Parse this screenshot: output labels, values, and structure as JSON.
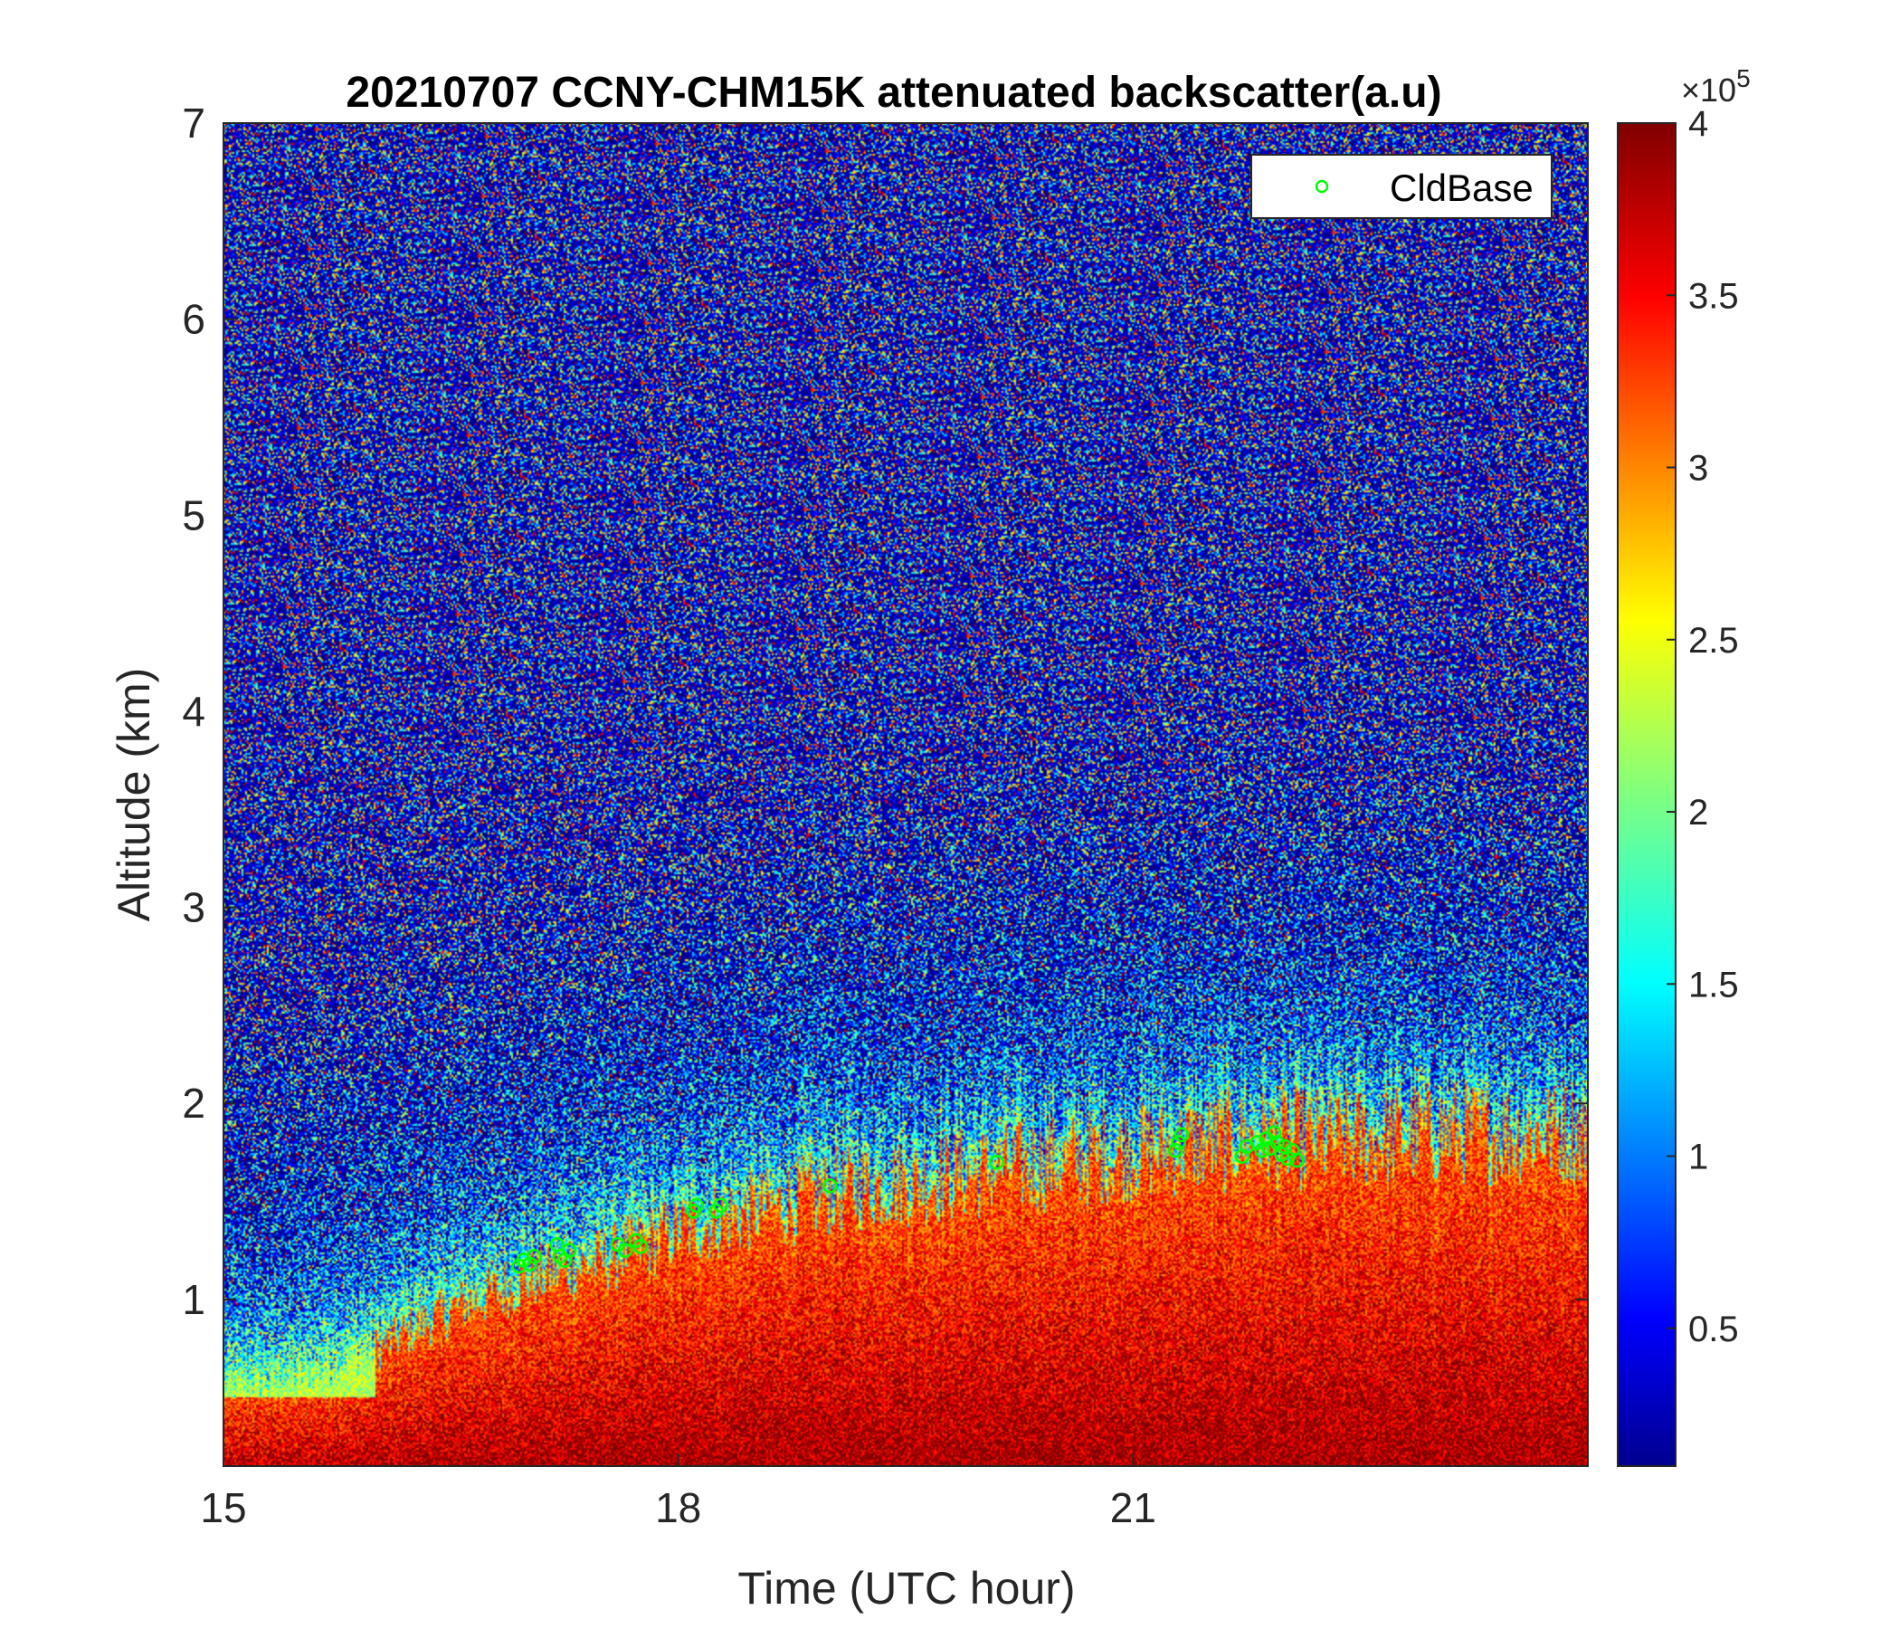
{
  "chart_data": {
    "type": "heatmap",
    "title": "20210707 CCNY-CHM15K attenuated backscatter(a.u)",
    "xlabel": "Time (UTC hour)",
    "ylabel": "Altitude (km)",
    "xlim": [
      15,
      24
    ],
    "ylim": [
      0.15,
      7
    ],
    "x_ticks": [
      15,
      18,
      21
    ],
    "x_tick_labels": [
      "15",
      "18",
      "21"
    ],
    "y_ticks": [
      1,
      2,
      3,
      4,
      5,
      6,
      7
    ],
    "y_tick_labels": [
      "1",
      "2",
      "3",
      "4",
      "5",
      "6",
      "7"
    ],
    "colorbar": {
      "colormap": "jet",
      "range": [
        0.1,
        4
      ],
      "ticks": [
        0.5,
        1,
        1.5,
        2,
        2.5,
        3,
        3.5,
        4
      ],
      "tick_labels": [
        "0.5",
        "1",
        "1.5",
        "2",
        "2.5",
        "3",
        "3.5",
        "4"
      ],
      "exponent_label": "×10",
      "exponent_power": "5"
    },
    "legend": {
      "position": "top-right",
      "entries": [
        {
          "name": "CldBase",
          "marker": "circle",
          "color": "#00ff00"
        }
      ]
    },
    "boundary_layer_top_km": [
      [
        15.0,
        0.55
      ],
      [
        15.5,
        0.6
      ],
      [
        16.0,
        0.75
      ],
      [
        16.5,
        0.95
      ],
      [
        17.0,
        1.1
      ],
      [
        17.5,
        1.2
      ],
      [
        18.0,
        1.35
      ],
      [
        18.5,
        1.45
      ],
      [
        19.0,
        1.55
      ],
      [
        19.5,
        1.6
      ],
      [
        20.0,
        1.65
      ],
      [
        20.5,
        1.7
      ],
      [
        21.0,
        1.75
      ],
      [
        21.5,
        1.8
      ],
      [
        22.0,
        1.82
      ],
      [
        22.5,
        1.82
      ],
      [
        23.0,
        1.85
      ],
      [
        23.5,
        1.85
      ],
      [
        24.0,
        1.85
      ]
    ],
    "cloud_base_points": [
      {
        "x": 16.95,
        "y": 1.17
      },
      {
        "x": 16.98,
        "y": 1.2
      },
      {
        "x": 17.02,
        "y": 1.18
      },
      {
        "x": 17.05,
        "y": 1.22
      },
      {
        "x": 17.2,
        "y": 1.28
      },
      {
        "x": 17.22,
        "y": 1.22
      },
      {
        "x": 17.25,
        "y": 1.2
      },
      {
        "x": 17.28,
        "y": 1.25
      },
      {
        "x": 17.6,
        "y": 1.28
      },
      {
        "x": 17.65,
        "y": 1.25
      },
      {
        "x": 17.72,
        "y": 1.3
      },
      {
        "x": 17.75,
        "y": 1.27
      },
      {
        "x": 18.1,
        "y": 1.45
      },
      {
        "x": 18.12,
        "y": 1.48
      },
      {
        "x": 18.25,
        "y": 1.45
      },
      {
        "x": 18.28,
        "y": 1.48
      },
      {
        "x": 19.0,
        "y": 1.58
      },
      {
        "x": 20.1,
        "y": 1.7
      },
      {
        "x": 21.28,
        "y": 1.76
      },
      {
        "x": 21.3,
        "y": 1.8
      },
      {
        "x": 21.32,
        "y": 1.84
      },
      {
        "x": 21.72,
        "y": 1.73
      },
      {
        "x": 21.75,
        "y": 1.78
      },
      {
        "x": 21.82,
        "y": 1.8
      },
      {
        "x": 21.85,
        "y": 1.76
      },
      {
        "x": 21.88,
        "y": 1.82
      },
      {
        "x": 21.9,
        "y": 1.77
      },
      {
        "x": 21.93,
        "y": 1.85
      },
      {
        "x": 21.95,
        "y": 1.8
      },
      {
        "x": 21.98,
        "y": 1.74
      },
      {
        "x": 22.0,
        "y": 1.78
      },
      {
        "x": 22.02,
        "y": 1.72
      },
      {
        "x": 22.05,
        "y": 1.76
      },
      {
        "x": 22.08,
        "y": 1.71
      }
    ],
    "color_scale": [
      "#00008f",
      "#0000ff",
      "#0080ff",
      "#00ffff",
      "#80ff80",
      "#ffff00",
      "#ff8000",
      "#ff0000",
      "#800000"
    ]
  }
}
